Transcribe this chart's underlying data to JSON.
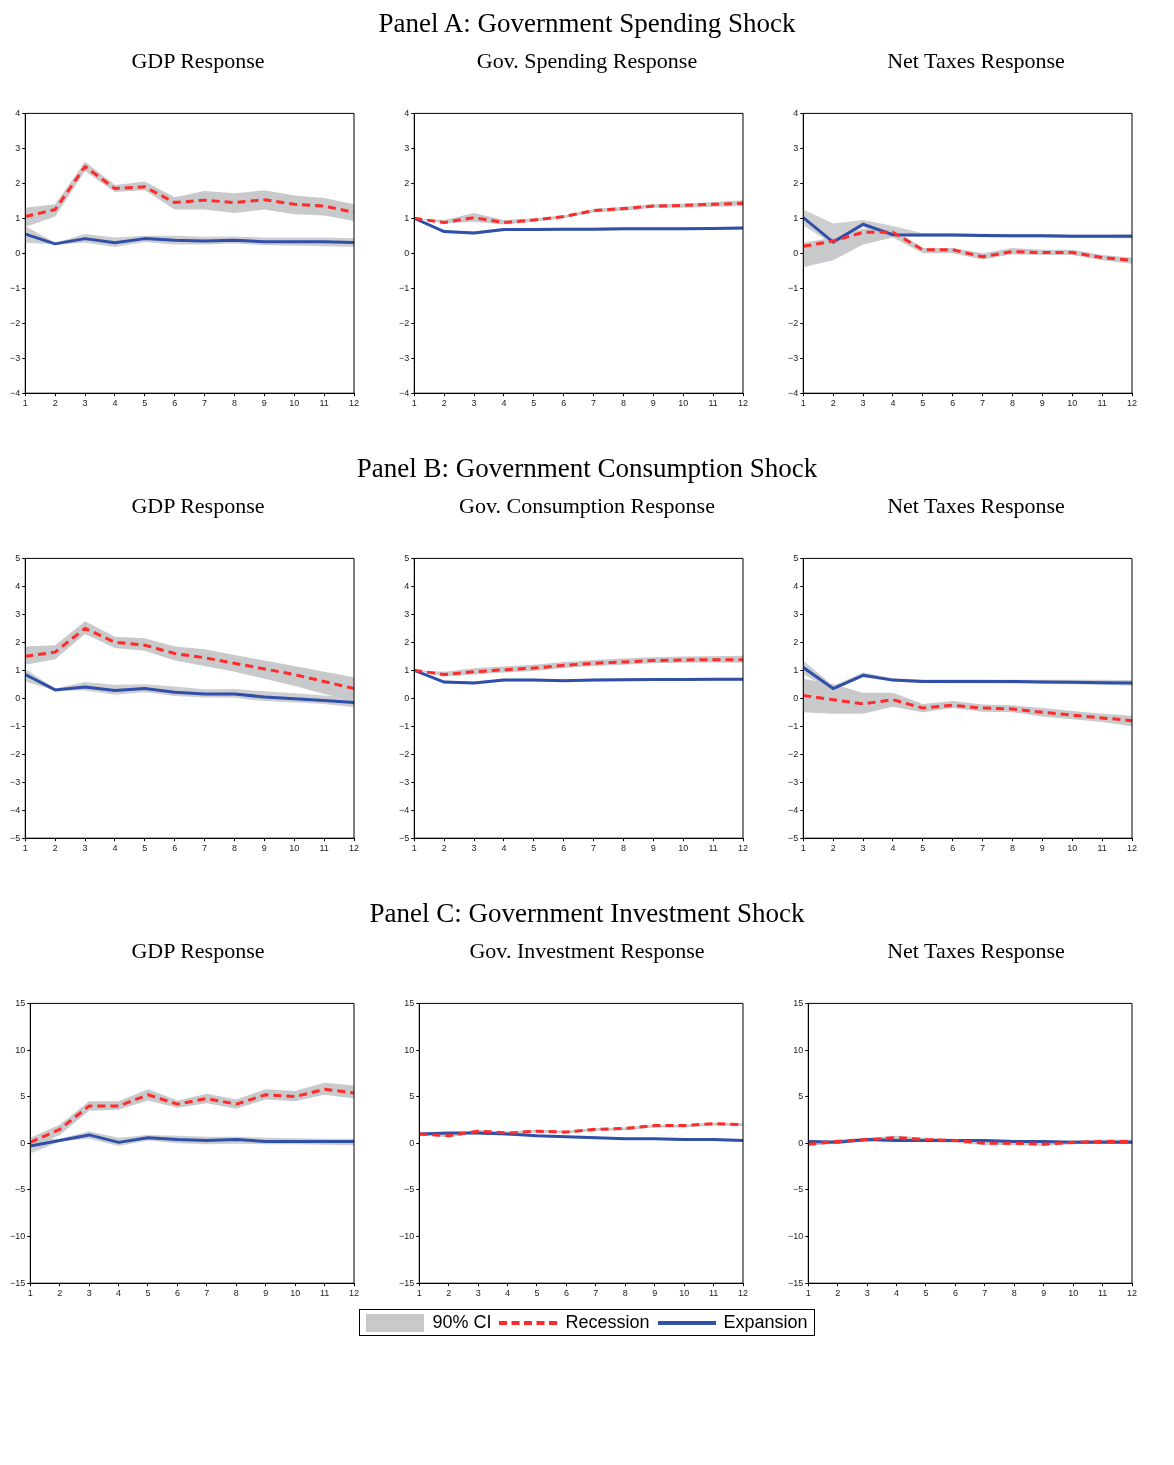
{
  "chart_data": [
    {
      "type": "line",
      "title": "GDP Response",
      "legend": "bottom",
      "annotations": [
        "Panel A: Government Spending Shock"
      ],
      "x": [
        1,
        2,
        3,
        4,
        5,
        6,
        7,
        8,
        9,
        10,
        11,
        12
      ],
      "xlim": [
        1,
        12
      ],
      "xticks": [
        1,
        2,
        3,
        4,
        5,
        6,
        7,
        8,
        9,
        10,
        11,
        12
      ],
      "ylim": [
        -4,
        4
      ],
      "yticks": [
        -4,
        -3,
        -2,
        -1,
        0,
        1,
        2,
        3,
        4
      ],
      "grid": false,
      "marker": "none",
      "series": [
        {
          "name": "Recession",
          "color": "#ff2a2a",
          "line_style": "dashed",
          "values": [
            1.05,
            1.25,
            2.48,
            1.85,
            1.9,
            1.45,
            1.52,
            1.45,
            1.53,
            1.4,
            1.35,
            1.17
          ],
          "lower": [
            0.75,
            1.05,
            2.35,
            1.75,
            1.8,
            1.25,
            1.25,
            1.15,
            1.25,
            1.12,
            1.08,
            0.92
          ],
          "upper": [
            1.3,
            1.4,
            2.62,
            1.95,
            2.05,
            1.6,
            1.78,
            1.72,
            1.8,
            1.65,
            1.58,
            1.4
          ]
        },
        {
          "name": "Expansion",
          "color": "#2f4fa8",
          "line_style": "solid",
          "values": [
            0.55,
            0.27,
            0.42,
            0.3,
            0.42,
            0.37,
            0.35,
            0.37,
            0.33,
            0.33,
            0.33,
            0.31
          ],
          "lower": [
            0.3,
            0.25,
            0.3,
            0.18,
            0.32,
            0.25,
            0.25,
            0.28,
            0.23,
            0.22,
            0.2,
            0.18
          ],
          "upper": [
            0.78,
            0.3,
            0.55,
            0.45,
            0.5,
            0.5,
            0.47,
            0.48,
            0.45,
            0.45,
            0.45,
            0.43
          ]
        }
      ]
    },
    {
      "type": "line",
      "title": "Gov. Spending Response",
      "legend": "bottom",
      "x": [
        1,
        2,
        3,
        4,
        5,
        6,
        7,
        8,
        9,
        10,
        11,
        12
      ],
      "xlim": [
        1,
        12
      ],
      "xticks": [
        1,
        2,
        3,
        4,
        5,
        6,
        7,
        8,
        9,
        10,
        11,
        12
      ],
      "ylim": [
        -4,
        4
      ],
      "yticks": [
        -4,
        -3,
        -2,
        -1,
        0,
        1,
        2,
        3,
        4
      ],
      "grid": false,
      "marker": "none",
      "series": [
        {
          "name": "Recession",
          "color": "#ff2a2a",
          "line_style": "dashed",
          "values": [
            1,
            0.88,
            1.02,
            0.88,
            0.95,
            1.05,
            1.22,
            1.28,
            1.35,
            1.37,
            1.4,
            1.43
          ],
          "lower": [
            1,
            0.85,
            0.9,
            0.82,
            0.9,
            1,
            1.17,
            1.22,
            1.3,
            1.3,
            1.33,
            1.35
          ],
          "upper": [
            1,
            0.95,
            1.15,
            0.95,
            1,
            1.08,
            1.27,
            1.33,
            1.4,
            1.42,
            1.47,
            1.52
          ]
        },
        {
          "name": "Expansion",
          "color": "#2f4fa8",
          "line_style": "solid",
          "values": [
            1,
            0.62,
            0.58,
            0.68,
            0.68,
            0.69,
            0.69,
            0.7,
            0.7,
            0.7,
            0.71,
            0.72
          ],
          "lower": [
            1,
            0.58,
            0.54,
            0.64,
            0.64,
            0.65,
            0.65,
            0.66,
            0.66,
            0.66,
            0.67,
            0.68
          ],
          "upper": [
            1,
            0.66,
            0.62,
            0.72,
            0.72,
            0.73,
            0.73,
            0.74,
            0.74,
            0.74,
            0.75,
            0.76
          ]
        }
      ]
    },
    {
      "type": "line",
      "title": "Net Taxes Response",
      "legend": "bottom",
      "x": [
        1,
        2,
        3,
        4,
        5,
        6,
        7,
        8,
        9,
        10,
        11,
        12
      ],
      "xlim": [
        1,
        12
      ],
      "xticks": [
        1,
        2,
        3,
        4,
        5,
        6,
        7,
        8,
        9,
        10,
        11,
        12
      ],
      "ylim": [
        -4,
        4
      ],
      "yticks": [
        -4,
        -3,
        -2,
        -1,
        0,
        1,
        2,
        3,
        4
      ],
      "grid": false,
      "marker": "none",
      "series": [
        {
          "name": "Recession",
          "color": "#ff2a2a",
          "line_style": "dashed",
          "values": [
            0.2,
            0.35,
            0.6,
            0.6,
            0.1,
            0.1,
            -0.1,
            0.05,
            0.02,
            0.02,
            -0.12,
            -0.2
          ],
          "lower": [
            -0.4,
            -0.2,
            0.25,
            0.45,
            0,
            0,
            -0.18,
            -0.03,
            -0.05,
            -0.05,
            -0.2,
            -0.3
          ],
          "upper": [
            0.3,
            0.45,
            0.7,
            0.7,
            0.15,
            0.15,
            0,
            0.15,
            0.1,
            0.1,
            -0.05,
            -0.12
          ]
        },
        {
          "name": "Expansion",
          "color": "#2f4fa8",
          "line_style": "solid",
          "values": [
            1.02,
            0.32,
            0.83,
            0.53,
            0.52,
            0.52,
            0.51,
            0.5,
            0.5,
            0.49,
            0.49,
            0.49
          ],
          "lower": [
            0.8,
            0.25,
            0.75,
            0.45,
            0.47,
            0.47,
            0.46,
            0.45,
            0.45,
            0.44,
            0.44,
            0.43
          ],
          "upper": [
            1.25,
            0.85,
            0.95,
            0.78,
            0.57,
            0.57,
            0.56,
            0.55,
            0.55,
            0.54,
            0.54,
            0.55
          ]
        }
      ]
    },
    {
      "type": "line",
      "title": "GDP Response",
      "legend": "bottom",
      "annotations": [
        "Panel B: Government Consumption Shock"
      ],
      "x": [
        1,
        2,
        3,
        4,
        5,
        6,
        7,
        8,
        9,
        10,
        11,
        12
      ],
      "xlim": [
        1,
        12
      ],
      "xticks": [
        1,
        2,
        3,
        4,
        5,
        6,
        7,
        8,
        9,
        10,
        11,
        12
      ],
      "ylim": [
        -5,
        5
      ],
      "yticks": [
        -5,
        -4,
        -3,
        -2,
        -1,
        0,
        1,
        2,
        3,
        4,
        5
      ],
      "grid": false,
      "marker": "none",
      "series": [
        {
          "name": "Recession",
          "color": "#ff2a2a",
          "line_style": "dashed",
          "values": [
            1.5,
            1.65,
            2.5,
            2,
            1.9,
            1.6,
            1.45,
            1.25,
            1.05,
            0.85,
            0.6,
            0.35
          ],
          "lower": [
            1.2,
            1.4,
            2.3,
            1.8,
            1.7,
            1.35,
            1.15,
            0.95,
            0.7,
            0.45,
            0.15,
            -0.1
          ],
          "upper": [
            1.85,
            1.9,
            2.75,
            2.2,
            2.15,
            1.85,
            1.75,
            1.55,
            1.35,
            1.15,
            0.95,
            0.75
          ]
        },
        {
          "name": "Expansion",
          "color": "#2f4fa8",
          "line_style": "solid",
          "values": [
            0.85,
            0.3,
            0.4,
            0.28,
            0.35,
            0.22,
            0.15,
            0.15,
            0.05,
            -0.02,
            -0.08,
            -0.15
          ],
          "lower": [
            0.6,
            0.28,
            0.28,
            0.13,
            0.22,
            0.08,
            0.03,
            0.02,
            -0.1,
            -0.15,
            -0.2,
            -0.32
          ],
          "upper": [
            1.05,
            0.35,
            0.58,
            0.48,
            0.5,
            0.42,
            0.32,
            0.33,
            0.25,
            0.18,
            0.1,
            0.05
          ]
        }
      ]
    },
    {
      "type": "line",
      "title": "Gov. Consumption Response",
      "legend": "bottom",
      "x": [
        1,
        2,
        3,
        4,
        5,
        6,
        7,
        8,
        9,
        10,
        11,
        12
      ],
      "xlim": [
        1,
        12
      ],
      "xticks": [
        1,
        2,
        3,
        4,
        5,
        6,
        7,
        8,
        9,
        10,
        11,
        12
      ],
      "ylim": [
        -5,
        5
      ],
      "yticks": [
        -5,
        -4,
        -3,
        -2,
        -1,
        0,
        1,
        2,
        3,
        4,
        5
      ],
      "grid": false,
      "marker": "none",
      "series": [
        {
          "name": "Recession",
          "color": "#ff2a2a",
          "line_style": "dashed",
          "values": [
            1,
            0.85,
            0.95,
            1.02,
            1.08,
            1.18,
            1.25,
            1.3,
            1.35,
            1.37,
            1.38,
            1.38
          ],
          "lower": [
            1,
            0.78,
            0.85,
            0.92,
            0.98,
            1.08,
            1.15,
            1.2,
            1.25,
            1.27,
            1.28,
            1.27
          ],
          "upper": [
            1,
            0.95,
            1.07,
            1.14,
            1.2,
            1.3,
            1.37,
            1.42,
            1.47,
            1.49,
            1.5,
            1.52
          ]
        },
        {
          "name": "Expansion",
          "color": "#2f4fa8",
          "line_style": "solid",
          "values": [
            1,
            0.58,
            0.55,
            0.65,
            0.65,
            0.63,
            0.65,
            0.66,
            0.67,
            0.67,
            0.68,
            0.68
          ],
          "lower": [
            1,
            0.53,
            0.5,
            0.6,
            0.6,
            0.58,
            0.6,
            0.61,
            0.62,
            0.62,
            0.63,
            0.63
          ],
          "upper": [
            1,
            0.63,
            0.6,
            0.7,
            0.7,
            0.68,
            0.7,
            0.71,
            0.72,
            0.72,
            0.73,
            0.73
          ]
        }
      ]
    },
    {
      "type": "line",
      "title": "Net Taxes Response",
      "legend": "bottom",
      "x": [
        1,
        2,
        3,
        4,
        5,
        6,
        7,
        8,
        9,
        10,
        11,
        12
      ],
      "xlim": [
        1,
        12
      ],
      "xticks": [
        1,
        2,
        3,
        4,
        5,
        6,
        7,
        8,
        9,
        10,
        11,
        12
      ],
      "ylim": [
        -5,
        5
      ],
      "yticks": [
        -5,
        -4,
        -3,
        -2,
        -1,
        0,
        1,
        2,
        3,
        4,
        5
      ],
      "grid": false,
      "marker": "none",
      "series": [
        {
          "name": "Recession",
          "color": "#ff2a2a",
          "line_style": "dashed",
          "values": [
            0.1,
            -0.05,
            -0.2,
            -0.05,
            -0.35,
            -0.25,
            -0.35,
            -0.38,
            -0.5,
            -0.6,
            -0.7,
            -0.8
          ],
          "lower": [
            -0.5,
            -0.55,
            -0.55,
            -0.3,
            -0.5,
            -0.35,
            -0.48,
            -0.5,
            -0.65,
            -0.75,
            -0.85,
            -1
          ],
          "upper": [
            0.7,
            0.5,
            0.2,
            0.2,
            -0.2,
            -0.1,
            -0.22,
            -0.25,
            -0.35,
            -0.45,
            -0.55,
            -0.62
          ]
        },
        {
          "name": "Expansion",
          "color": "#2f4fa8",
          "line_style": "solid",
          "values": [
            1.1,
            0.35,
            0.82,
            0.65,
            0.6,
            0.6,
            0.6,
            0.6,
            0.58,
            0.57,
            0.56,
            0.55
          ],
          "lower": [
            0.85,
            0.3,
            0.75,
            0.6,
            0.55,
            0.54,
            0.54,
            0.53,
            0.52,
            0.5,
            0.48,
            0.45
          ],
          "upper": [
            1.35,
            0.45,
            0.92,
            0.72,
            0.67,
            0.67,
            0.67,
            0.66,
            0.66,
            0.66,
            0.66,
            0.65
          ]
        }
      ]
    },
    {
      "type": "line",
      "title": "GDP Response",
      "legend": "bottom",
      "annotations": [
        "Panel C: Government Investment Shock"
      ],
      "x": [
        1,
        2,
        3,
        4,
        5,
        6,
        7,
        8,
        9,
        10,
        11,
        12
      ],
      "xlim": [
        1,
        12
      ],
      "xticks": [
        1,
        2,
        3,
        4,
        5,
        6,
        7,
        8,
        9,
        10,
        11,
        12
      ],
      "ylim": [
        -15,
        15
      ],
      "yticks": [
        -15,
        -10,
        -5,
        0,
        5,
        10,
        15
      ],
      "grid": false,
      "marker": "none",
      "series": [
        {
          "name": "Recession",
          "color": "#ff2a2a",
          "line_style": "dashed",
          "values": [
            0.1,
            1.5,
            4,
            4,
            5.2,
            4.2,
            4.8,
            4.2,
            5.2,
            5,
            5.8,
            5.4
          ],
          "lower": [
            -0.5,
            0.9,
            3.5,
            3.6,
            4.6,
            3.8,
            4.3,
            3.7,
            4.7,
            4.5,
            5.2,
            4.8
          ],
          "upper": [
            0.6,
            2,
            4.5,
            4.5,
            5.8,
            4.6,
            5.3,
            4.7,
            5.8,
            5.6,
            6.5,
            6.2
          ]
        },
        {
          "name": "Expansion",
          "color": "#2f4fa8",
          "line_style": "solid",
          "values": [
            -0.3,
            0.3,
            0.9,
            0.1,
            0.6,
            0.4,
            0.3,
            0.4,
            0.2,
            0.2,
            0.2,
            0.2
          ],
          "lower": [
            -1.1,
            0.2,
            0.5,
            -0.3,
            0.3,
            0,
            -0.1,
            -0.05,
            -0.1,
            -0.1,
            -0.15,
            -0.2
          ],
          "upper": [
            0.5,
            0.5,
            1.3,
            0.6,
            0.9,
            0.8,
            0.7,
            0.7,
            0.6,
            0.55,
            0.5,
            0.5
          ]
        }
      ]
    },
    {
      "type": "line",
      "title": "Gov. Investment Response",
      "legend": "bottom",
      "x": [
        1,
        2,
        3,
        4,
        5,
        6,
        7,
        8,
        9,
        10,
        11,
        12
      ],
      "xlim": [
        1,
        12
      ],
      "xticks": [
        1,
        2,
        3,
        4,
        5,
        6,
        7,
        8,
        9,
        10,
        11,
        12
      ],
      "ylim": [
        -15,
        15
      ],
      "yticks": [
        -15,
        -10,
        -5,
        0,
        5,
        10,
        15
      ],
      "grid": false,
      "marker": "none",
      "series": [
        {
          "name": "Recession",
          "color": "#ff2a2a",
          "line_style": "dashed",
          "values": [
            1,
            0.8,
            1.3,
            1.1,
            1.3,
            1.2,
            1.5,
            1.6,
            1.9,
            1.9,
            2.1,
            2
          ],
          "lower": [
            0.85,
            0.65,
            1.15,
            0.95,
            1.15,
            1.05,
            1.35,
            1.4,
            1.7,
            1.7,
            1.9,
            1.85
          ],
          "upper": [
            1.15,
            0.95,
            1.45,
            1.25,
            1.45,
            1.35,
            1.65,
            1.7,
            2,
            2,
            2.2,
            2.15
          ]
        },
        {
          "name": "Expansion",
          "color": "#2f4fa8",
          "line_style": "solid",
          "values": [
            1,
            1.1,
            1.1,
            1,
            0.8,
            0.7,
            0.6,
            0.5,
            0.5,
            0.4,
            0.4,
            0.3
          ],
          "lower": [
            0.9,
            1,
            0.95,
            0.85,
            0.7,
            0.6,
            0.5,
            0.4,
            0.35,
            0.3,
            0.25,
            0.2
          ],
          "upper": [
            1.1,
            1.2,
            1.15,
            1.05,
            0.9,
            0.8,
            0.7,
            0.6,
            0.55,
            0.5,
            0.45,
            0.4
          ]
        }
      ]
    },
    {
      "type": "line",
      "title": "Net Taxes Response",
      "legend": "bottom",
      "legend_title": "90% CI",
      "x": [
        1,
        2,
        3,
        4,
        5,
        6,
        7,
        8,
        9,
        10,
        11,
        12
      ],
      "xlim": [
        1,
        12
      ],
      "xticks": [
        1,
        2,
        3,
        4,
        5,
        6,
        7,
        8,
        9,
        10,
        11,
        12
      ],
      "ylim": [
        -15,
        15
      ],
      "yticks": [
        -15,
        -10,
        -5,
        0,
        5,
        10,
        15
      ],
      "grid": false,
      "marker": "none",
      "series": [
        {
          "name": "Recession",
          "color": "#ff2a2a",
          "line_style": "dashed",
          "values": [
            -0.1,
            0.2,
            0.4,
            0.6,
            0.4,
            0.3,
            0,
            0,
            -0.1,
            0.1,
            0.2,
            0.2
          ],
          "lower": [
            -0.3,
            0,
            0.2,
            0.4,
            0.2,
            0.05,
            -0.2,
            -0.2,
            -0.25,
            -0.1,
            0,
            0
          ],
          "upper": [
            0.1,
            0.4,
            0.6,
            0.8,
            0.6,
            0.45,
            0.2,
            0.2,
            0.15,
            0.3,
            0.4,
            0.4
          ]
        },
        {
          "name": "Expansion",
          "color": "#2f4fa8",
          "line_style": "solid",
          "values": [
            0.2,
            0.1,
            0.4,
            0.3,
            0.3,
            0.3,
            0.3,
            0.2,
            0.2,
            0.1,
            0.1,
            0.1
          ],
          "lower": [
            0.05,
            -0.05,
            0.25,
            0.15,
            0.15,
            0.15,
            0.1,
            0.05,
            0,
            -0.05,
            -0.05,
            -0.05
          ],
          "upper": [
            0.35,
            0.25,
            0.55,
            0.45,
            0.45,
            0.45,
            0.4,
            0.35,
            0.3,
            0.25,
            0.25,
            0.25
          ]
        }
      ]
    }
  ]
}
